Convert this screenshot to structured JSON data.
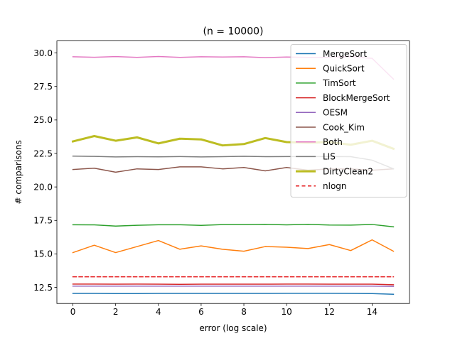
{
  "chart_data": {
    "type": "line",
    "title": "(n = 10000)",
    "xlabel": "error (log scale)",
    "ylabel": "# comparisons",
    "xlim": [
      -0.75,
      15.75
    ],
    "ylim": [
      11.3,
      30.9
    ],
    "xticks": [
      0,
      2,
      4,
      6,
      8,
      10,
      12,
      14
    ],
    "yticks": [
      12.5,
      15.0,
      17.5,
      20.0,
      22.5,
      25.0,
      27.5,
      30.0
    ],
    "ytick_labels": [
      "12.5",
      "15.0",
      "17.5",
      "20.0",
      "22.5",
      "25.0",
      "27.5",
      "30.0"
    ],
    "xtick_labels": [
      "0",
      "2",
      "4",
      "6",
      "8",
      "10",
      "12",
      "14"
    ],
    "legend_position": "top-right",
    "grid": false,
    "x": [
      0,
      1,
      2,
      3,
      4,
      5,
      6,
      7,
      8,
      9,
      10,
      11,
      12,
      13,
      14,
      15
    ],
    "series": [
      {
        "name": "MergeSort",
        "color": "#1f77b4",
        "width": 1.5,
        "dash": "",
        "values": [
          12.05,
          12.05,
          12.04,
          12.04,
          12.05,
          12.05,
          12.05,
          12.05,
          12.05,
          12.05,
          12.06,
          12.06,
          12.06,
          12.05,
          12.04,
          11.99
        ]
      },
      {
        "name": "QuickSort",
        "color": "#ff7f0e",
        "width": 1.5,
        "dash": "",
        "values": [
          15.1,
          15.65,
          15.1,
          15.55,
          16.0,
          15.35,
          15.6,
          15.35,
          15.2,
          15.55,
          15.5,
          15.4,
          15.7,
          15.25,
          16.05,
          15.2
        ]
      },
      {
        "name": "TimSort",
        "color": "#2ca02c",
        "width": 1.5,
        "dash": "",
        "values": [
          17.18,
          17.17,
          17.08,
          17.14,
          17.18,
          17.18,
          17.13,
          17.19,
          17.19,
          17.21,
          17.17,
          17.21,
          17.16,
          17.15,
          17.2,
          17.02
        ]
      },
      {
        "name": "BlockMergeSort",
        "color": "#d62728",
        "width": 1.5,
        "dash": "",
        "values": [
          12.75,
          12.75,
          12.74,
          12.75,
          12.74,
          12.73,
          12.74,
          12.74,
          12.74,
          12.74,
          12.75,
          12.75,
          12.74,
          12.74,
          12.74,
          12.7
        ]
      },
      {
        "name": "OESM",
        "color": "#9467bd",
        "width": 1.5,
        "dash": "",
        "values": [
          12.6,
          12.6,
          12.6,
          12.6,
          12.6,
          12.6,
          12.6,
          12.6,
          12.6,
          12.6,
          12.6,
          12.6,
          12.6,
          12.6,
          12.6,
          12.58
        ]
      },
      {
        "name": "Cook_Kim",
        "color": "#8c564b",
        "width": 1.5,
        "dash": "",
        "values": [
          21.3,
          21.4,
          21.1,
          21.35,
          21.3,
          21.5,
          21.5,
          21.35,
          21.45,
          21.2,
          21.45,
          21.25,
          21.35,
          21.35,
          21.25,
          21.35
        ]
      },
      {
        "name": "Both",
        "color": "#e377c2",
        "width": 1.5,
        "dash": "",
        "values": [
          29.72,
          29.68,
          29.73,
          29.67,
          29.74,
          29.67,
          29.72,
          29.7,
          29.72,
          29.65,
          29.7,
          29.67,
          29.68,
          29.72,
          29.6,
          28.05
        ]
      },
      {
        "name": "LIS",
        "color": "#7f7f7f",
        "width": 1.5,
        "dash": "",
        "values": [
          22.3,
          22.28,
          22.24,
          22.26,
          22.25,
          22.27,
          22.24,
          22.26,
          22.29,
          22.26,
          22.27,
          22.27,
          22.27,
          22.26,
          22.0,
          21.35
        ]
      },
      {
        "name": "DirtyClean2",
        "color": "#bcbd22",
        "width": 3,
        "dash": "",
        "values": [
          23.4,
          23.8,
          23.45,
          23.7,
          23.25,
          23.6,
          23.55,
          23.1,
          23.2,
          23.65,
          23.35,
          23.3,
          23.35,
          23.15,
          23.45,
          22.85
        ]
      },
      {
        "name": "nlogn",
        "color": "#e41a1c",
        "width": 1.5,
        "dash": "5,3.5",
        "values": [
          13.29,
          13.29,
          13.29,
          13.29,
          13.29,
          13.29,
          13.29,
          13.29,
          13.29,
          13.29,
          13.29,
          13.29,
          13.29,
          13.29,
          13.29,
          13.29
        ]
      }
    ]
  }
}
